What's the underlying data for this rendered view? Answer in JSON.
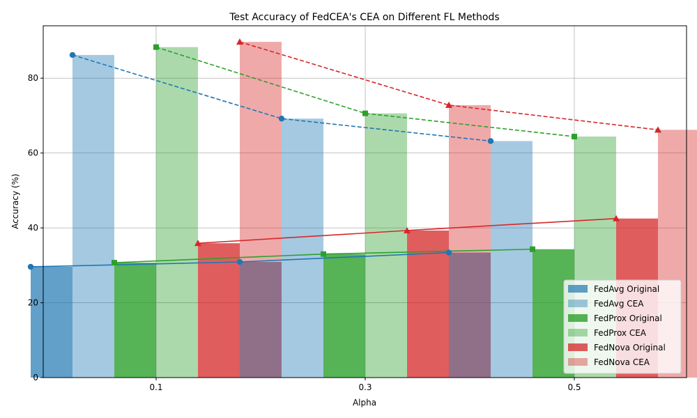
{
  "chart_data": {
    "type": "bar",
    "title": "Test Accuracy of FedCEA's CEA on Different FL Methods",
    "xlabel": "Alpha",
    "ylabel": "Accuracy (%)",
    "categories": [
      "0.1",
      "0.3",
      "0.5"
    ],
    "ylim": [
      0,
      94
    ],
    "yticks": [
      0,
      20,
      40,
      60,
      80
    ],
    "grid": true,
    "legend_position": "lower-right",
    "series": [
      {
        "name": "FedAvg Original",
        "values": [
          29.6,
          30.9,
          33.4
        ],
        "color": "#1f77b4",
        "alpha": 0.7,
        "marker": "circle",
        "line": "solid",
        "line_color": "#1f77b4"
      },
      {
        "name": "FedAvg CEA",
        "values": [
          86.2,
          69.2,
          63.2
        ],
        "color": "#1f77b4",
        "alpha": 0.4,
        "marker": "circle",
        "line": "dashed",
        "line_color": "#1f77b4"
      },
      {
        "name": "FedProx Original",
        "values": [
          30.7,
          33.0,
          34.3
        ],
        "color": "#2ca02c",
        "alpha": 0.8,
        "marker": "square",
        "line": "solid",
        "line_color": "#2ca02c"
      },
      {
        "name": "FedProx CEA",
        "values": [
          88.3,
          70.6,
          64.4
        ],
        "color": "#2ca02c",
        "alpha": 0.4,
        "marker": "square",
        "line": "dashed",
        "line_color": "#2ca02c"
      },
      {
        "name": "FedNova Original",
        "values": [
          35.9,
          39.3,
          42.5
        ],
        "color": "#d62728",
        "alpha": 0.75,
        "marker": "triangle",
        "line": "solid",
        "line_color": "#d62728"
      },
      {
        "name": "FedNova CEA",
        "values": [
          89.7,
          72.8,
          66.2
        ],
        "color": "#d62728",
        "alpha": 0.4,
        "marker": "triangle",
        "line": "dashed",
        "line_color": "#d62728"
      }
    ]
  }
}
